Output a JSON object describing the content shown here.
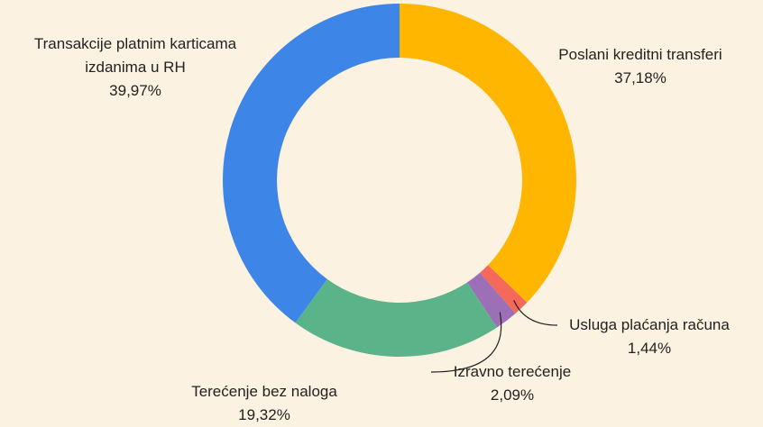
{
  "chart_data": {
    "type": "donut",
    "categories": [
      "Poslani kreditni transferi",
      "Usluga plaćanja računa",
      "Izravno terećenje",
      "Terećenje bez naloga",
      "Transakcije platnim karticama izdanima u RH"
    ],
    "values": [
      37.18,
      1.44,
      2.09,
      19.32,
      39.97
    ],
    "value_labels": [
      "37,18%",
      "1,44%",
      "2,09%",
      "19,32%",
      "39,97%"
    ],
    "colors": [
      "#ffb600",
      "#f4695a",
      "#9c6fb7",
      "#5bb38a",
      "#3d86e8"
    ]
  }
}
